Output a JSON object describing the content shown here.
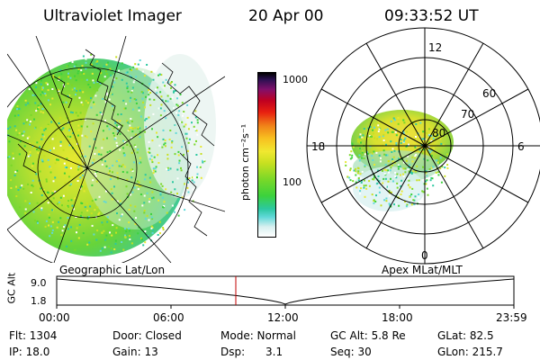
{
  "header": {
    "instrument": "Ultraviolet Imager",
    "date": "20 Apr 00",
    "time": "09:33:52 UT"
  },
  "colorbar": {
    "unit_label": "photon cm⁻²s⁻¹",
    "tick_1000": "1000",
    "tick_100": "100",
    "scale": "log"
  },
  "polar_plot": {
    "label_12": "12",
    "label_18": "18",
    "label_6": "6",
    "label_0": "0",
    "label_60": "60",
    "label_70": "70",
    "label_80": "80"
  },
  "panel_labels": {
    "left": "Geographic Lat/Lon",
    "right": "Apex MLat/MLT"
  },
  "alt_plot": {
    "axis_label": "GC Alt",
    "y_top": "9.0",
    "y_bottom": "1.8",
    "x_ticks": [
      "00:00",
      "06:00",
      "12:00",
      "18:00",
      "23:59"
    ],
    "marker_time": "09:33:52"
  },
  "info": {
    "flt": "Flt: 1304",
    "ip": "IP: 18.0",
    "door": "Door: Closed",
    "gain": "Gain: 13",
    "mode": "Mode: Normal",
    "dsp_label": "Dsp:",
    "dsp_value": "3.1",
    "gc_alt": "GC Alt: 5.8 Re",
    "seq": "Seq: 30",
    "glat": "GLat: 82.5",
    "glon": "GLon: 215.7"
  },
  "colors": {
    "marker": "#c00000",
    "grid": "#000000",
    "aurora_green": "#3cd23c",
    "aurora_yellow": "#e8e830",
    "aurora_cyan": "#60d8d8"
  }
}
